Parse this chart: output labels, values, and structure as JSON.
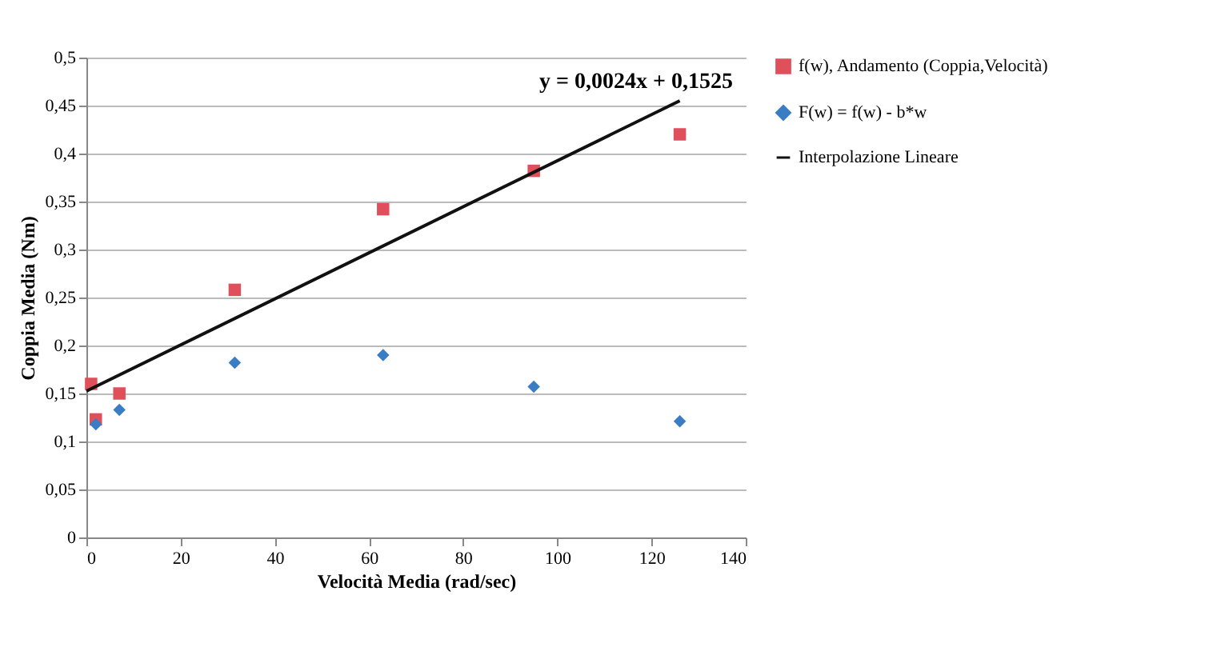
{
  "chart_data": {
    "type": "scatter",
    "xlabel": "Velocità Media (rad/sec)",
    "ylabel": "Coppia Media (Nm)",
    "xlim": [
      0,
      140
    ],
    "xticks": [
      0,
      20,
      40,
      60,
      80,
      100,
      120,
      140
    ],
    "ylim": [
      0,
      0.5
    ],
    "yticks": [
      {
        "value": 0,
        "label": "0"
      },
      {
        "value": 0.05,
        "label": "0,05"
      },
      {
        "value": 0.1,
        "label": "0,1"
      },
      {
        "value": 0.15,
        "label": "0,15"
      },
      {
        "value": 0.2,
        "label": "0,2"
      },
      {
        "value": 0.25,
        "label": "0,25"
      },
      {
        "value": 0.3,
        "label": "0,3"
      },
      {
        "value": 0.35,
        "label": "0,35"
      },
      {
        "value": 0.4,
        "label": "0,4"
      },
      {
        "value": 0.45,
        "label": "0,45"
      },
      {
        "value": 0.5,
        "label": "0,5"
      }
    ],
    "grid": "y",
    "legend": "right",
    "annotations": [
      "y = 0,0024x + 0,1525"
    ],
    "series": [
      {
        "name": "f(w), Andamento (Coppia,Velocità)",
        "color": "#e0505a",
        "marker": "square",
        "x": [
          1,
          2,
          7,
          31.5,
          63,
          95,
          126
        ],
        "values": [
          0.16,
          0.123,
          0.15,
          0.258,
          0.342,
          0.382,
          0.42
        ]
      },
      {
        "name": "F(w) = f(w) - b*w",
        "color": "#3b7dc4",
        "marker": "diamond",
        "x": [
          2,
          7,
          31.5,
          63,
          95,
          126
        ],
        "values": [
          0.118,
          0.133,
          0.182,
          0.19,
          0.157,
          0.121
        ]
      },
      {
        "name": "Interpolazione Lineare",
        "type": "line",
        "color": "#111111",
        "marker": "none",
        "x": [
          0,
          126
        ],
        "values": [
          0.1525,
          0.455
        ]
      }
    ]
  }
}
